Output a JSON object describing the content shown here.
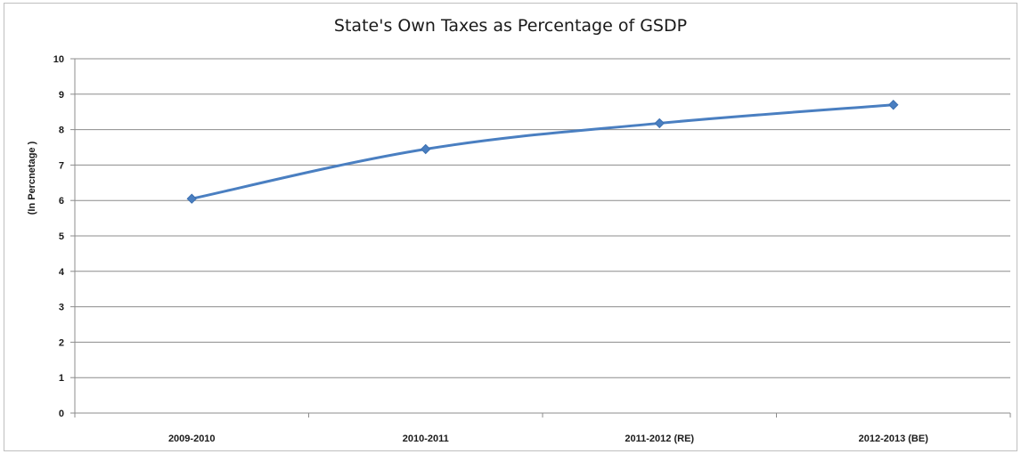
{
  "chart_data": {
    "type": "line",
    "title": "State's Own Taxes as Percentage of GSDP",
    "xlabel": "",
    "ylabel": "(In Percnetage )",
    "categories": [
      "2009-2010",
      "2010-2011",
      "2011-2012 (RE)",
      "2012-2013 (BE)"
    ],
    "series": [
      {
        "values": [
          6.05,
          7.45,
          8.18,
          8.7
        ]
      }
    ],
    "ylim": [
      0,
      10
    ],
    "yticks": [
      "0",
      "1",
      "2",
      "3",
      "4",
      "5",
      "6",
      "7",
      "8",
      "9",
      "10"
    ],
    "grid": true,
    "legend": "none",
    "colors": {
      "line": "#4a7fc1",
      "grid": "#8c8c8c",
      "axis": "#8c8c8c"
    }
  }
}
